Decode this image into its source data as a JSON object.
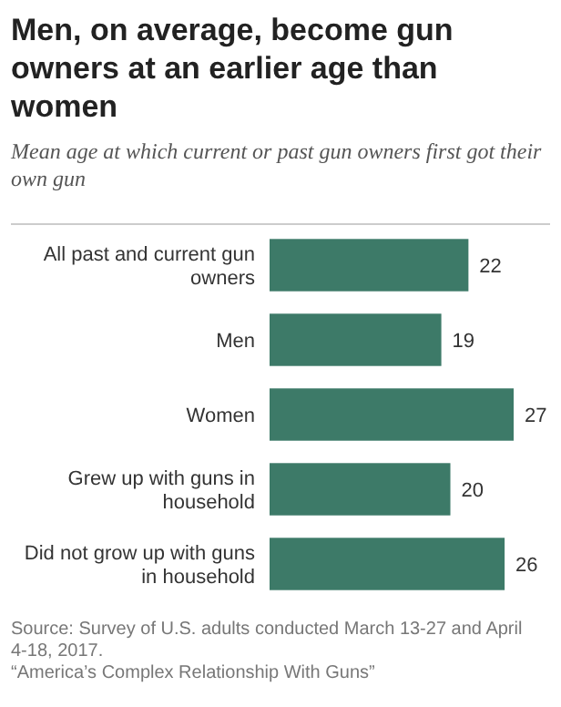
{
  "chart_data": {
    "type": "bar",
    "orientation": "horizontal",
    "title": "Men, on average, become gun owners at an earlier age than women",
    "subtitle": "Mean age at which current or past gun owners first got their own gun",
    "categories": [
      "All past and current gun owners",
      "Men",
      "Women",
      "Grew up with guns in household",
      "Did not grow up with guns in household"
    ],
    "values": [
      22,
      19,
      27,
      20,
      26
    ],
    "color": "#3d7a68",
    "data_labels": true,
    "annotations": [
      "Source: Survey of U.S. adults conducted March 13-27 and April 4-18, 2017.",
      "“America’s Complex Relationship With Guns”"
    ]
  }
}
